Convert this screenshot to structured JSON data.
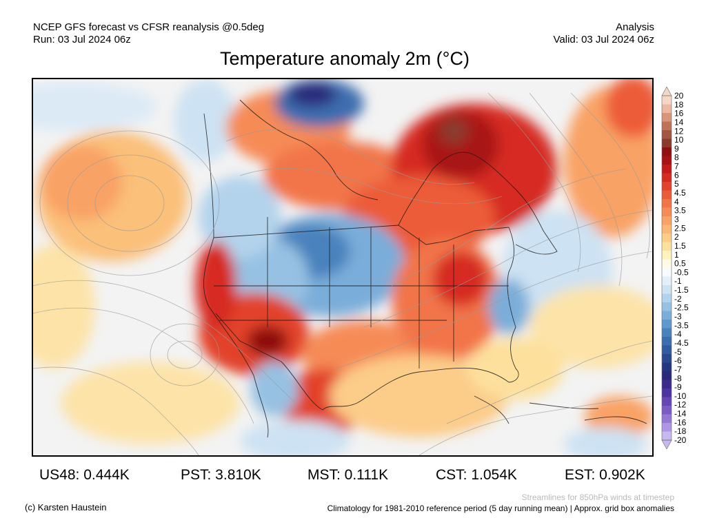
{
  "header": {
    "left_line1": "NCEP GFS forecast vs CFSR reanalysis @0.5deg",
    "left_line2": "Run: 03 Jul 2024 06z",
    "right_line1": "Analysis",
    "right_line2": "Valid: 03 Jul 2024 06z"
  },
  "title": "Temperature anomaly 2m (°C)",
  "colorbar": {
    "labels": [
      "20",
      "18",
      "16",
      "14",
      "12",
      "10",
      "9",
      "8",
      "7",
      "6",
      "5",
      "4.5",
      "4",
      "3.5",
      "3",
      "2.5",
      "2",
      "1.5",
      "1",
      "0.5",
      "-0.5",
      "-1",
      "-1.5",
      "-2",
      "-2.5",
      "-3",
      "-3.5",
      "-4",
      "-4.5",
      "-5",
      "-6",
      "-7",
      "-8",
      "-9",
      "-10",
      "-12",
      "-14",
      "-16",
      "-18",
      "-20"
    ],
    "colors": [
      "#f5d7c8",
      "#eab9a2",
      "#d9957a",
      "#c07258",
      "#a45443",
      "#8b3a2e",
      "#8e1010",
      "#a91212",
      "#c41a1a",
      "#d62b21",
      "#e2432c",
      "#ec5b39",
      "#f27449",
      "#f68b57",
      "#f9a265",
      "#fbb876",
      "#fccc89",
      "#fde09c",
      "#fff2bd",
      "#fffbe7",
      "#f7fbff",
      "#e3eff9",
      "#cde2f3",
      "#b3d3ec",
      "#96c1e3",
      "#7aadd9",
      "#5f98cc",
      "#4a82bd",
      "#3c6daf",
      "#315aa0",
      "#2a4890",
      "#24367f",
      "#2b2a7a",
      "#3b2a8a",
      "#4e34a0",
      "#6446b4",
      "#7b5cc7",
      "#9478d6",
      "#ad96e3",
      "#c8b8f0"
    ]
  },
  "stats": [
    {
      "label": "US48: 0.444K"
    },
    {
      "label": "PST: 3.810K"
    },
    {
      "label": "MST: 0.111K"
    },
    {
      "label": "CST: 1.054K"
    },
    {
      "label": "EST: 0.902K"
    }
  ],
  "footer": {
    "copyright": "(c) Karsten Haustein",
    "streamlines": "Streamlines for 850hPa winds at timestep",
    "climatology": "Climatology for 1981-2010 reference period (5 day running mean) | Approx. grid box anomalies"
  }
}
